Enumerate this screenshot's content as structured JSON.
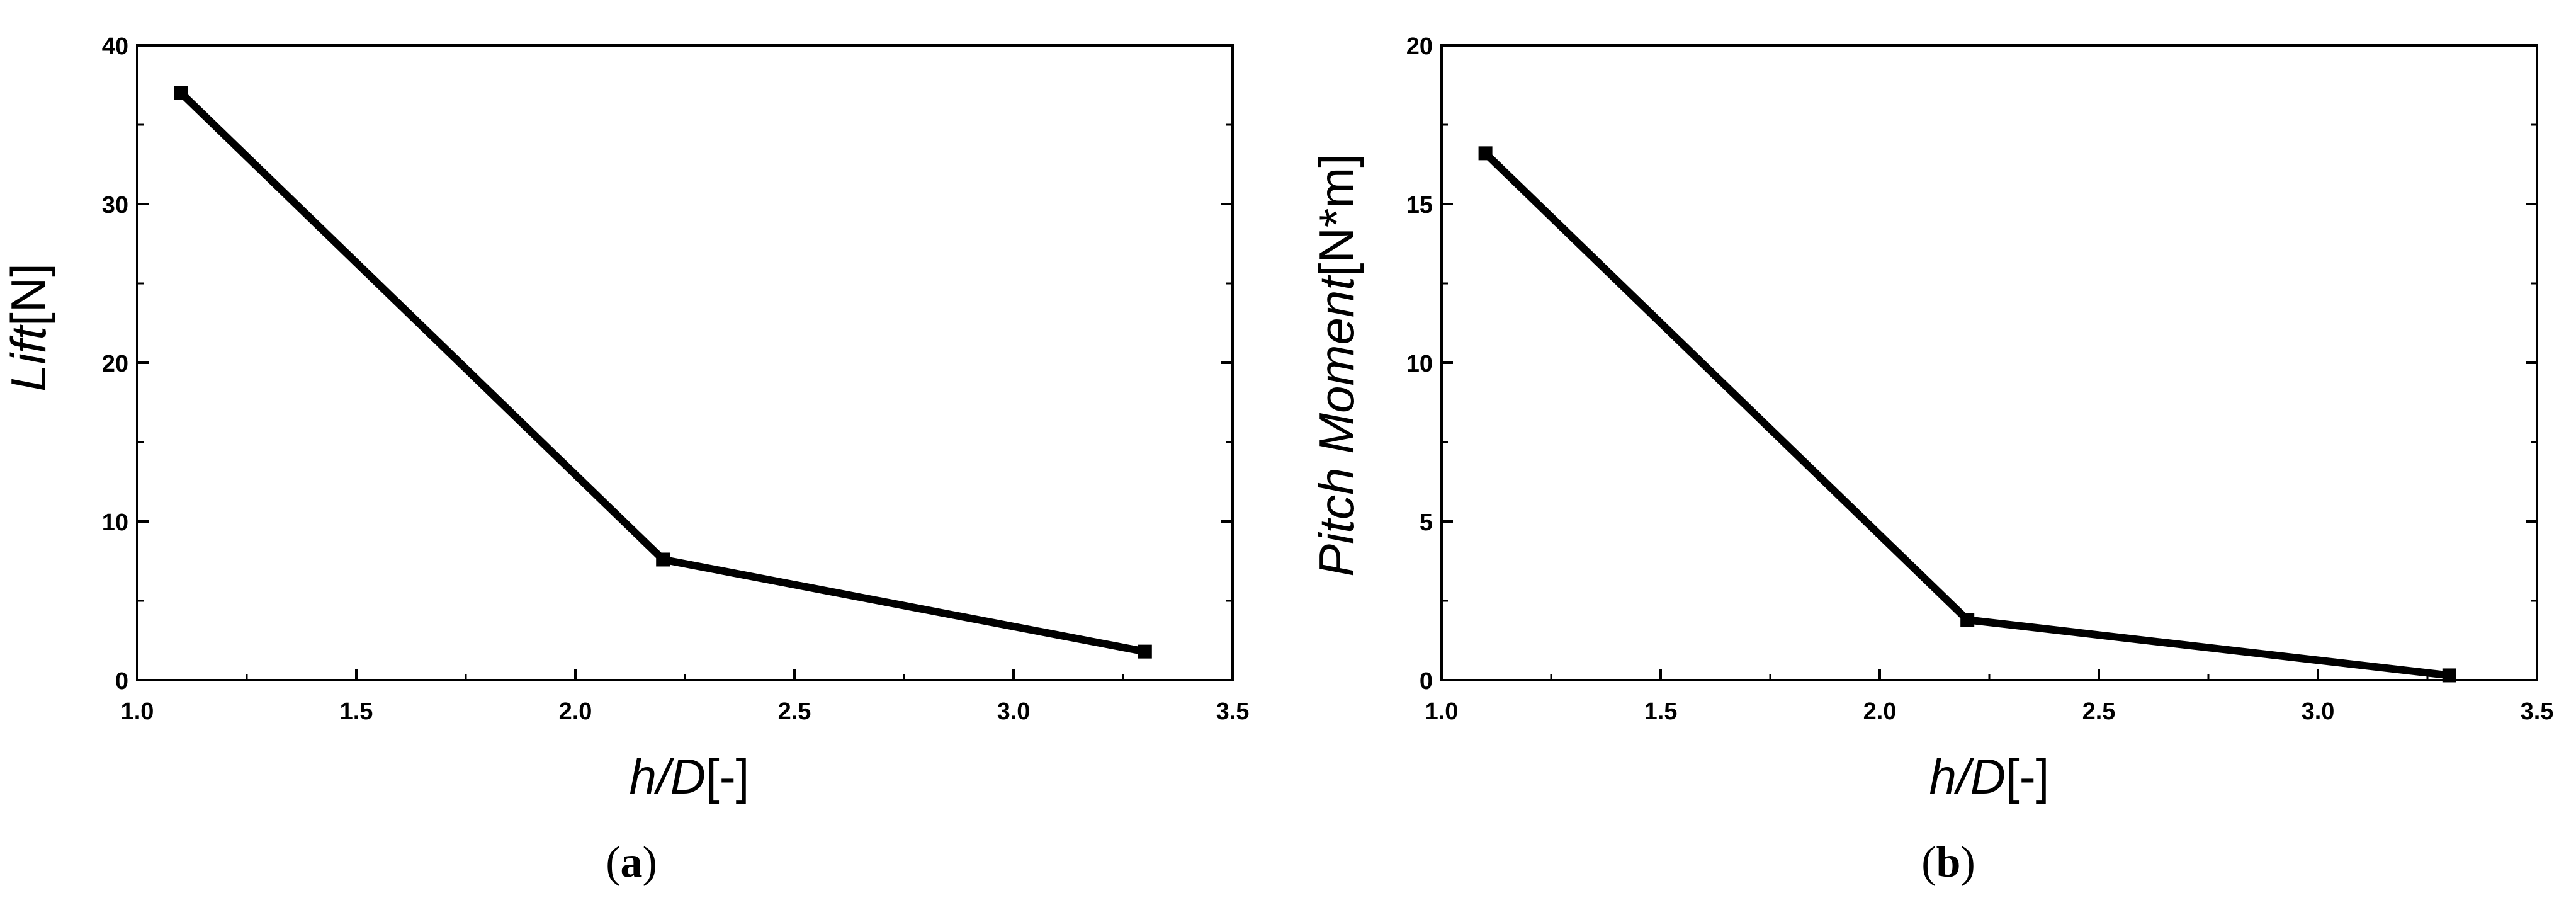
{
  "chart_data": [
    {
      "type": "line",
      "caption": "a",
      "xlabel": {
        "italic": "h/D",
        "plain": "[-]"
      },
      "ylabel": {
        "italic": "Lift",
        "plain": "[N]"
      },
      "xlim": [
        1.0,
        3.5
      ],
      "ylim": [
        0,
        40
      ],
      "xticks": [
        "1.0",
        "1.5",
        "2.0",
        "2.5",
        "3.0",
        "3.5"
      ],
      "yticks": [
        "0",
        "10",
        "20",
        "30",
        "40"
      ],
      "grid": false,
      "series": [
        {
          "x": [
            1.1,
            2.2,
            3.3
          ],
          "y": [
            37.0,
            7.6,
            1.8
          ]
        }
      ]
    },
    {
      "type": "line",
      "caption": "b",
      "xlabel": {
        "italic": "h/D",
        "plain": "[-]"
      },
      "ylabel": {
        "italic": "Pitch Moment",
        "plain": "[N*m]"
      },
      "xlim": [
        1.0,
        3.5
      ],
      "ylim": [
        0,
        20
      ],
      "xticks": [
        "1.0",
        "1.5",
        "2.0",
        "2.5",
        "3.0",
        "3.5"
      ],
      "yticks": [
        "0",
        "5",
        "10",
        "15",
        "20"
      ],
      "grid": false,
      "series": [
        {
          "x": [
            1.1,
            2.2,
            3.3
          ],
          "y": [
            16.6,
            1.9,
            0.15
          ]
        }
      ]
    }
  ]
}
